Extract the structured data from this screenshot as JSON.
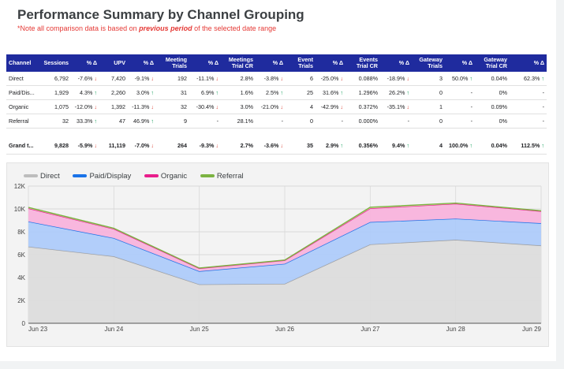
{
  "title": "Performance Summary by Channel Grouping",
  "note_prefix": "*Note all comparison data is based on ",
  "note_emph": "previous period",
  "note_suffix": " of the selected date range",
  "table": {
    "headers": [
      "Channel",
      "Sessions",
      "% Δ",
      "UPV",
      "% Δ",
      "Meeting Trials",
      "% Δ",
      "Meetings Trial CR",
      "% Δ",
      "Event Trials",
      "% Δ",
      "Events Trial CR",
      "% Δ",
      "Gateway Trials",
      "% Δ",
      "Gateway Trial CR",
      "% Δ"
    ],
    "rows": [
      [
        "Direct",
        "6,792",
        "-7.6%",
        "7,420",
        "-9.1%",
        "192",
        "-11.1%",
        "2.8%",
        "-3.8%",
        "6",
        "-25.0%",
        "0.088%",
        "-18.9%",
        "3",
        "50.0%",
        "0.04%",
        "62.3%"
      ],
      [
        "Paid/Dis...",
        "1,929",
        "4.3%",
        "2,260",
        "3.0%",
        "31",
        "6.9%",
        "1.6%",
        "2.5%",
        "25",
        "31.6%",
        "1.296%",
        "26.2%",
        "0",
        "-",
        "0%",
        "-"
      ],
      [
        "Organic",
        "1,075",
        "-12.0%",
        "1,392",
        "-11.3%",
        "32",
        "-30.4%",
        "3.0%",
        "-21.0%",
        "4",
        "-42.9%",
        "0.372%",
        "-35.1%",
        "1",
        "-",
        "0.09%",
        "-"
      ],
      [
        "Referral",
        "32",
        "33.3%",
        "47",
        "46.9%",
        "9",
        "-",
        "28.1%",
        "-",
        "0",
        "-",
        "0.000%",
        "-",
        "0",
        "-",
        "0%",
        "-"
      ]
    ],
    "total": [
      "Grand t...",
      "9,828",
      "-5.9%",
      "11,119",
      "-7.0%",
      "264",
      "-9.3%",
      "2.7%",
      "-3.6%",
      "35",
      "2.9%",
      "0.356%",
      "9.4%",
      "4",
      "100.0%",
      "0.04%",
      "112.5%"
    ]
  },
  "colors": {
    "direct": "#9e9e9e",
    "paid": "#1a73e8",
    "organic": "#e91e8c",
    "referral": "#7cb342",
    "header_bg": "#1f2b9e",
    "up": "#0f9d58",
    "down": "#db4437"
  },
  "chart_data": {
    "type": "area",
    "stacked": true,
    "x": [
      "Jun 23",
      "Jun 24",
      "Jun 25",
      "Jun 26",
      "Jun 27",
      "Jun 28",
      "Jun 29"
    ],
    "series": [
      {
        "name": "Direct",
        "values": [
          6700,
          5850,
          3400,
          3450,
          6900,
          7300,
          6800
        ]
      },
      {
        "name": "Paid/Display",
        "values": [
          2200,
          1600,
          1150,
          1750,
          1950,
          1850,
          1950
        ]
      },
      {
        "name": "Organic",
        "values": [
          1150,
          800,
          250,
          300,
          1200,
          1300,
          1050
        ]
      },
      {
        "name": "Referral",
        "values": [
          80,
          60,
          30,
          30,
          100,
          60,
          40
        ]
      }
    ],
    "yticks": [
      "0",
      "2K",
      "4K",
      "6K",
      "8K",
      "10K",
      "12K"
    ],
    "ylim": [
      0,
      12000
    ],
    "grid": true,
    "legend": "top-left"
  }
}
